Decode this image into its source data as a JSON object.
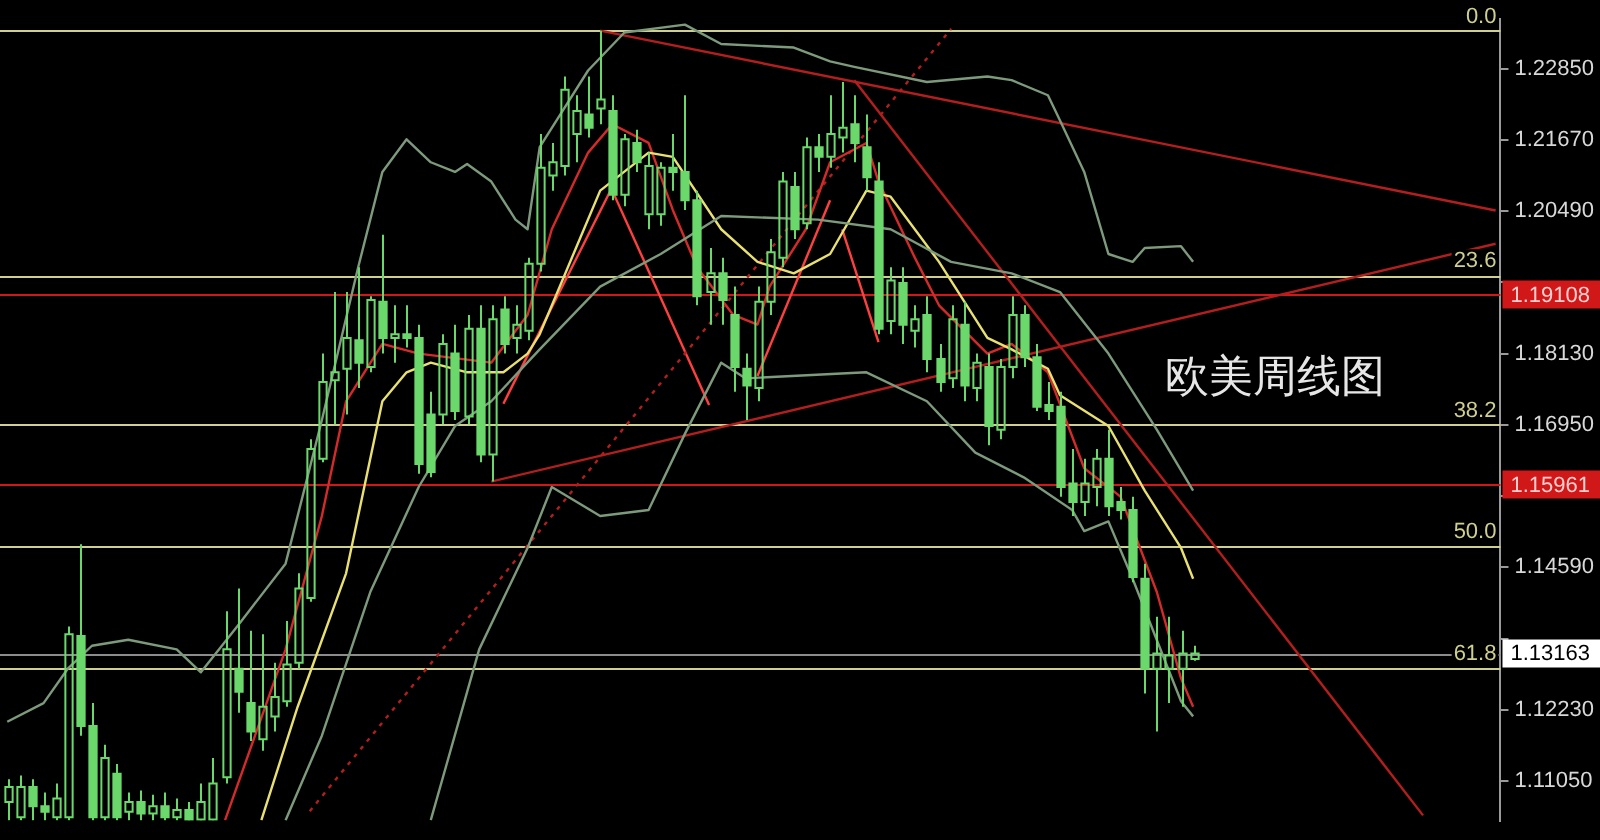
{
  "chart_data": {
    "type": "candlestick",
    "color": "#6ad86a",
    "categories": [
      null,
      null,
      null,
      null,
      null,
      null,
      null,
      null,
      null,
      null,
      null,
      null,
      null,
      null,
      null,
      null,
      null,
      null,
      null,
      null,
      null,
      null,
      null,
      null,
      null,
      null,
      null,
      null,
      null,
      null,
      null,
      null,
      null,
      null,
      null,
      null,
      null,
      null,
      null,
      null,
      null,
      null,
      null,
      null,
      null,
      null,
      null,
      null,
      null,
      null,
      null,
      null,
      null,
      null,
      null,
      null,
      null,
      null,
      null,
      null,
      null,
      null,
      null,
      null,
      null,
      null,
      null,
      null,
      null,
      null,
      null,
      null,
      null,
      null,
      null,
      null,
      null,
      null,
      null,
      null,
      null,
      null,
      null,
      null,
      null,
      null,
      null,
      null,
      null,
      null,
      null,
      null,
      null,
      null,
      null,
      null,
      null,
      null,
      null,
      null,
      null,
      null,
      null,
      null,
      null,
      null,
      null,
      null,
      null,
      null,
      null,
      null,
      null,
      null,
      null,
      null,
      null,
      null,
      null,
      null,
      null,
      null,
      null,
      null
    ],
    "ohlc": [
      [
        1.107,
        1.1108,
        1.104,
        1.1095
      ],
      [
        1.1045,
        1.1114,
        1.104,
        1.1095
      ],
      [
        1.1095,
        1.1108,
        1.104,
        1.1063
      ],
      [
        1.1063,
        1.1086,
        1.104,
        1.1054
      ],
      [
        1.1045,
        1.1101,
        1.104,
        1.1076
      ],
      [
        1.1045,
        1.1361,
        1.104,
        1.1348
      ],
      [
        1.1345,
        1.1497,
        1.118,
        1.1196
      ],
      [
        1.1196,
        1.1234,
        1.104,
        1.1045
      ],
      [
        1.1045,
        1.1165,
        1.104,
        1.1143
      ],
      [
        1.1117,
        1.1133,
        1.104,
        1.1045
      ],
      [
        1.1054,
        1.1086,
        1.104,
        1.107
      ],
      [
        1.107,
        1.1089,
        1.104,
        1.1051
      ],
      [
        1.1051,
        1.1082,
        1.104,
        1.1063
      ],
      [
        1.1063,
        1.1086,
        1.104,
        1.1045
      ],
      [
        1.1045,
        1.1076,
        1.104,
        1.1057
      ],
      [
        1.1057,
        1.107,
        1.104,
        1.1041
      ],
      [
        1.1041,
        1.1101,
        1.104,
        1.107
      ],
      [
        1.1041,
        1.1143,
        1.104,
        1.1101
      ],
      [
        1.1111,
        1.1386,
        1.1101,
        1.1323
      ],
      [
        1.1291,
        1.1424,
        1.1218,
        1.1253
      ],
      [
        1.1234,
        1.1354,
        1.1171,
        1.1187
      ],
      [
        1.1174,
        1.1348,
        1.1155,
        1.1228
      ],
      [
        1.1212,
        1.1301,
        1.1187,
        1.1244
      ],
      [
        1.1237,
        1.137,
        1.1228,
        1.1298
      ],
      [
        1.1301,
        1.1449,
        1.1291,
        1.1424
      ],
      [
        1.1408,
        1.1671,
        1.1402,
        1.1655
      ],
      [
        1.1639,
        1.1813,
        1.1633,
        1.1766
      ],
      [
        1.1769,
        1.1915,
        1.1696,
        1.1782
      ],
      [
        1.1788,
        1.1915,
        1.1712,
        1.1839
      ],
      [
        1.1835,
        1.1956,
        1.1756,
        1.1798
      ],
      [
        1.1791,
        1.1908,
        1.1782,
        1.1902
      ],
      [
        1.1899,
        1.201,
        1.1813,
        1.1839
      ],
      [
        1.1839,
        1.1893,
        1.1798,
        1.1845
      ],
      [
        1.1845,
        1.1893,
        1.1823,
        1.1839
      ],
      [
        1.1839,
        1.1861,
        1.1614,
        1.163
      ],
      [
        1.1712,
        1.175,
        1.1608,
        1.1617
      ],
      [
        1.1712,
        1.1845,
        1.1696,
        1.1829
      ],
      [
        1.1813,
        1.1861,
        1.1703,
        1.1718
      ],
      [
        1.1709,
        1.1877,
        1.1696,
        1.1854
      ],
      [
        1.1854,
        1.1893,
        1.1633,
        1.1646
      ],
      [
        1.1646,
        1.1893,
        1.1601,
        1.187
      ],
      [
        1.1886,
        1.1908,
        1.1813,
        1.1829
      ],
      [
        1.1839,
        1.1893,
        1.1813,
        1.1861
      ],
      [
        1.1851,
        1.1972,
        1.1835,
        1.1962
      ],
      [
        1.1962,
        1.2177,
        1.1949,
        1.2121
      ],
      [
        1.2108,
        1.2162,
        1.2083,
        1.213
      ],
      [
        1.2124,
        1.2272,
        1.2108,
        1.225
      ],
      [
        1.2177,
        1.2241,
        1.213,
        1.2215
      ],
      [
        1.2209,
        1.2272,
        1.2171,
        1.2187
      ],
      [
        1.2219,
        1.2348,
        1.2193,
        1.2234
      ],
      [
        1.2215,
        1.2241,
        1.2067,
        1.2076
      ],
      [
        1.2076,
        1.2177,
        1.2057,
        1.2168
      ],
      [
        1.2162,
        1.2184,
        1.2114,
        1.213
      ],
      [
        1.2044,
        1.2146,
        1.2019,
        1.2124
      ],
      [
        1.2044,
        1.213,
        1.2025,
        1.2121
      ],
      [
        1.2121,
        1.2177,
        1.2083,
        1.2114
      ],
      [
        1.2114,
        1.2241,
        1.2051,
        1.2067
      ],
      [
        1.2067,
        1.2083,
        1.1893,
        1.1908
      ],
      [
        1.1915,
        1.1988,
        1.1861,
        1.1946
      ],
      [
        1.1946,
        1.1972,
        1.1861,
        1.1902
      ],
      [
        1.1877,
        1.1924,
        1.175,
        1.1791
      ],
      [
        1.1788,
        1.1813,
        1.1703,
        1.176
      ],
      [
        1.1756,
        1.1924,
        1.1734,
        1.1899
      ],
      [
        1.1899,
        1.2003,
        1.1877,
        1.1981
      ],
      [
        1.1972,
        1.2114,
        1.1956,
        1.2098
      ],
      [
        1.2089,
        1.2114,
        1.2003,
        1.2019
      ],
      [
        1.2029,
        1.2171,
        1.2019,
        1.2155
      ],
      [
        1.2155,
        1.2177,
        1.2114,
        1.2139
      ],
      [
        1.2139,
        1.2241,
        1.2121,
        1.2177
      ],
      [
        1.2171,
        1.2263,
        1.2146,
        1.2187
      ],
      [
        1.2193,
        1.2241,
        1.213,
        1.2162
      ],
      [
        1.2155,
        1.2209,
        1.2083,
        1.2105
      ],
      [
        1.2098,
        1.213,
        1.1845,
        1.1854
      ],
      [
        1.1867,
        1.1956,
        1.1845,
        1.1934
      ],
      [
        1.193,
        1.1956,
        1.1829,
        1.1861
      ],
      [
        1.1851,
        1.1893,
        1.1823,
        1.187
      ],
      [
        1.1877,
        1.1908,
        1.1782,
        1.1804
      ],
      [
        1.1804,
        1.1829,
        1.175,
        1.1766
      ],
      [
        1.1772,
        1.1893,
        1.1756,
        1.187
      ],
      [
        1.1861,
        1.1899,
        1.1734,
        1.176
      ],
      [
        1.1756,
        1.1813,
        1.1734,
        1.1798
      ],
      [
        1.1791,
        1.1813,
        1.1661,
        1.1693
      ],
      [
        1.1687,
        1.1804,
        1.1671,
        1.1791
      ],
      [
        1.1791,
        1.1908,
        1.1772,
        1.1877
      ],
      [
        1.1877,
        1.1893,
        1.1791,
        1.1807
      ],
      [
        1.1807,
        1.1829,
        1.1718,
        1.1725
      ],
      [
        1.1728,
        1.1766,
        1.1703,
        1.1718
      ],
      [
        1.1725,
        1.175,
        1.1576,
        1.1592
      ],
      [
        1.1598,
        1.1655,
        1.1544,
        1.1567
      ],
      [
        1.1567,
        1.1639,
        1.1544,
        1.1598
      ],
      [
        1.1592,
        1.1655,
        1.156,
        1.1639
      ],
      [
        1.1639,
        1.1687,
        1.1544,
        1.156
      ],
      [
        1.1567,
        1.1592,
        1.1538,
        1.1554
      ],
      [
        1.1554,
        1.1576,
        1.1434,
        1.1443
      ],
      [
        1.144,
        1.1465,
        1.125,
        1.1291
      ],
      [
        1.1291,
        1.1377,
        1.1187,
        1.1316
      ],
      [
        1.1291,
        1.1377,
        1.1234,
        1.1313
      ],
      [
        1.1291,
        1.1354,
        1.1228,
        1.1316
      ],
      [
        1.1307,
        1.1329,
        1.1304,
        1.1316
      ],
      null,
      null,
      null,
      null,
      null,
      null,
      null,
      null,
      null,
      null,
      null,
      null,
      null,
      null,
      null,
      null,
      null,
      null,
      null,
      null,
      null,
      null,
      null,
      null,
      null
    ],
    "series": [
      {
        "type": "line",
        "color": "#7d9a7d",
        "values": [
          1.1203,
          null,
          null,
          1.1234,
          null,
          1.1291,
          null,
          1.1329,
          null,
          null,
          1.1339,
          null,
          null,
          null,
          1.1323,
          null,
          1.1285,
          null,
          null,
          1.1361,
          null,
          null,
          null,
          1.1465,
          null,
          null,
          1.1703,
          null,
          null,
          1.1956,
          null,
          1.2114,
          null,
          1.2168,
          null,
          1.213,
          null,
          1.2114,
          1.2127,
          null,
          1.2098,
          null,
          1.2035,
          1.2019,
          1.2155,
          null,
          null,
          null,
          1.2282,
          null,
          null,
          1.2345,
          null,
          null,
          null,
          null,
          1.2358,
          null,
          null,
          1.2326,
          null,
          null,
          null,
          null,
          null,
          1.232,
          null,
          null,
          1.2297,
          null,
          1.2288,
          null,
          null,
          null,
          null,
          null,
          1.2263,
          null,
          null,
          null,
          null,
          1.2272,
          null,
          1.2266,
          null,
          null,
          1.2241,
          1.2199,
          null,
          1.2114,
          null,
          1.1978,
          null,
          1.1965,
          1.1988,
          null,
          null,
          1.1991,
          1.1965,
          null,
          null,
          null,
          null,
          null,
          null,
          null,
          null,
          null,
          null,
          null,
          null,
          null,
          null,
          null,
          null,
          null,
          null,
          null,
          null,
          null,
          null,
          null,
          null,
          null
        ]
      },
      {
        "type": "line",
        "color": "#7d9a7d",
        "values": [
          null,
          null,
          null,
          null,
          null,
          null,
          null,
          null,
          null,
          null,
          null,
          null,
          null,
          null,
          null,
          null,
          null,
          null,
          null,
          null,
          null,
          null,
          null,
          1.104,
          null,
          null,
          1.118,
          null,
          null,
          null,
          1.1418,
          null,
          null,
          null,
          1.1592,
          null,
          null,
          1.1693,
          null,
          null,
          1.1734,
          null,
          null,
          null,
          1.182,
          null,
          null,
          null,
          null,
          1.1924,
          null,
          null,
          null,
          null,
          1.1978,
          null,
          null,
          null,
          null,
          1.2041,
          null,
          null,
          null,
          null,
          null,
          null,
          null,
          1.2035,
          null,
          null,
          null,
          null,
          null,
          1.2019,
          null,
          null,
          null,
          null,
          1.1965,
          null,
          null,
          null,
          null,
          1.1946,
          null,
          null,
          null,
          1.1915,
          null,
          null,
          null,
          1.1813,
          null,
          null,
          null,
          1.1687,
          null,
          null,
          1.1586,
          null,
          null,
          null,
          null,
          null,
          null,
          null,
          null,
          null,
          null,
          null,
          null,
          null,
          null,
          null,
          null,
          null,
          null,
          null,
          null,
          null,
          null,
          null,
          null,
          null
        ]
      },
      {
        "type": "line",
        "color": "#7d9a7d",
        "values": [
          null,
          null,
          null,
          null,
          null,
          null,
          null,
          null,
          null,
          null,
          null,
          null,
          null,
          null,
          null,
          null,
          null,
          null,
          null,
          null,
          null,
          null,
          null,
          null,
          null,
          null,
          null,
          null,
          null,
          null,
          null,
          null,
          null,
          null,
          null,
          1.104,
          null,
          null,
          null,
          1.1323,
          null,
          null,
          null,
          1.1491,
          null,
          1.1592,
          null,
          null,
          null,
          1.1544,
          null,
          null,
          null,
          1.1554,
          null,
          null,
          1.168,
          null,
          null,
          1.1798,
          null,
          1.1772,
          null,
          null,
          null,
          null,
          null,
          null,
          null,
          null,
          null,
          1.1782,
          null,
          null,
          null,
          null,
          1.1734,
          null,
          null,
          null,
          1.1649,
          null,
          null,
          null,
          1.1608,
          null,
          null,
          null,
          1.1554,
          1.1519,
          null,
          1.1535,
          null,
          1.144,
          null,
          null,
          null,
          1.1237,
          1.1212,
          null,
          null,
          null,
          null,
          null,
          null,
          null,
          null,
          null,
          null,
          null,
          null,
          null,
          null,
          null,
          null,
          null,
          null,
          null,
          null,
          null,
          null,
          null,
          null,
          null
        ]
      },
      {
        "type": "line",
        "color": "#e8e070",
        "values": [
          null,
          null,
          null,
          null,
          null,
          null,
          null,
          null,
          null,
          null,
          null,
          null,
          null,
          null,
          null,
          null,
          null,
          null,
          null,
          null,
          null,
          1.104,
          null,
          null,
          1.1228,
          null,
          null,
          null,
          1.1449,
          null,
          null,
          1.1734,
          null,
          1.1782,
          null,
          1.1798,
          null,
          null,
          1.1782,
          null,
          null,
          1.1782,
          null,
          1.1813,
          1.1845,
          null,
          null,
          1.1988,
          null,
          1.2083,
          null,
          null,
          null,
          1.2146,
          null,
          1.2139,
          null,
          null,
          null,
          1.2019,
          null,
          null,
          1.1965,
          null,
          null,
          1.1946,
          null,
          null,
          1.1978,
          null,
          null,
          1.2083,
          null,
          1.2073,
          null,
          null,
          null,
          1.1965,
          null,
          null,
          null,
          1.1839,
          null,
          1.182,
          null,
          null,
          1.1788,
          1.1744,
          null,
          null,
          null,
          1.1693,
          null,
          null,
          1.1586,
          null,
          null,
          1.1491,
          1.144,
          null,
          null,
          null,
          null,
          null,
          null,
          null,
          null,
          null,
          null,
          null,
          null,
          null,
          null,
          null,
          null,
          null,
          null,
          null,
          null,
          null,
          null,
          null,
          null,
          null
        ]
      },
      {
        "type": "line",
        "color": "#d42a2a",
        "values": [
          null,
          null,
          null,
          null,
          null,
          null,
          null,
          null,
          null,
          null,
          null,
          null,
          null,
          null,
          null,
          null,
          null,
          null,
          1.104,
          null,
          null,
          null,
          null,
          1.1323,
          null,
          null,
          1.1544,
          null,
          1.1734,
          null,
          null,
          1.1829,
          null,
          null,
          1.1813,
          null,
          null,
          null,
          null,
          null,
          1.1798,
          null,
          null,
          1.1877,
          null,
          1.2019,
          null,
          null,
          1.2146,
          null,
          1.2193,
          null,
          null,
          1.2162,
          null,
          1.2051,
          null,
          1.1956,
          null,
          null,
          1.1877,
          null,
          1.1861,
          1.1924,
          null,
          null,
          1.2019,
          null,
          1.213,
          null,
          null,
          1.2162,
          1.2098,
          null,
          null,
          1.1972,
          null,
          1.1893,
          null,
          null,
          null,
          1.1813,
          null,
          1.1829,
          null,
          null,
          1.1782,
          null,
          null,
          1.1623,
          null,
          null,
          1.1576,
          null,
          null,
          1.1418,
          null,
          1.1275,
          1.1228,
          null,
          null,
          null,
          null,
          null,
          null,
          null,
          null,
          null,
          null,
          null,
          null,
          null,
          null,
          null,
          null,
          null,
          null,
          null,
          null,
          null,
          null,
          null,
          null,
          null
        ]
      },
      {
        "type": "line",
        "color": "#b41e1e",
        "values": [
          null,
          null,
          null,
          null,
          null,
          null,
          null,
          null,
          null,
          null,
          null,
          null,
          null,
          null,
          null,
          null,
          null,
          null,
          null,
          null,
          null,
          null,
          null,
          null,
          null,
          null,
          null,
          null,
          null,
          null,
          null,
          null,
          null,
          null,
          null,
          null,
          null,
          null,
          null,
          null,
          null,
          null,
          null,
          null,
          null,
          null,
          null,
          null,
          null,
          1.2348,
          null,
          null,
          null,
          null,
          null,
          null,
          null,
          null,
          null,
          null,
          null,
          null,
          null,
          null,
          null,
          null,
          null,
          null,
          null,
          null,
          null,
          null,
          null,
          null,
          null,
          null,
          null,
          null,
          null,
          null,
          null,
          null,
          null,
          null,
          null,
          null,
          null,
          null,
          null,
          null,
          null,
          null,
          null,
          null,
          null,
          null,
          null,
          null,
          null,
          null,
          null,
          null,
          null,
          null,
          null,
          null,
          null,
          null,
          null,
          null,
          null,
          null,
          null,
          null,
          null,
          null,
          null,
          null,
          null,
          null,
          null,
          null,
          null,
          1.205
        ]
      },
      {
        "type": "line",
        "color": "#b41e1e",
        "values": [
          null,
          null,
          null,
          null,
          null,
          null,
          null,
          null,
          null,
          null,
          null,
          null,
          null,
          null,
          null,
          null,
          null,
          null,
          null,
          null,
          null,
          null,
          null,
          null,
          null,
          null,
          null,
          null,
          null,
          null,
          null,
          null,
          null,
          null,
          null,
          null,
          null,
          null,
          null,
          null,
          null,
          null,
          null,
          null,
          null,
          null,
          null,
          null,
          null,
          null,
          null,
          null,
          null,
          null,
          null,
          null,
          null,
          null,
          null,
          null,
          null,
          null,
          null,
          null,
          null,
          null,
          null,
          null,
          null,
          null,
          1.2266,
          null,
          null,
          null,
          null,
          null,
          null,
          null,
          null,
          null,
          null,
          null,
          null,
          null,
          null,
          null,
          null,
          null,
          null,
          null,
          null,
          null,
          null,
          null,
          null,
          null,
          null,
          null,
          null,
          null,
          null,
          null,
          null,
          null,
          null,
          null,
          null,
          null,
          null,
          null,
          null,
          null,
          null,
          null,
          null,
          null,
          null,
          1.1048,
          null,
          null,
          null,
          null,
          null,
          null
        ]
      },
      {
        "type": "line",
        "color": "#b41e1e",
        "values": [
          null,
          null,
          null,
          null,
          null,
          null,
          null,
          null,
          null,
          null,
          null,
          null,
          null,
          null,
          null,
          null,
          null,
          null,
          null,
          null,
          null,
          null,
          null,
          null,
          null,
          null,
          null,
          null,
          null,
          null,
          null,
          null,
          null,
          null,
          null,
          null,
          null,
          null,
          null,
          null,
          1.1601,
          null,
          null,
          null,
          null,
          null,
          null,
          null,
          null,
          null,
          null,
          null,
          null,
          null,
          null,
          null,
          null,
          null,
          null,
          null,
          null,
          null,
          null,
          null,
          null,
          null,
          null,
          null,
          null,
          null,
          null,
          null,
          null,
          null,
          null,
          null,
          null,
          null,
          null,
          null,
          null,
          null,
          null,
          null,
          null,
          null,
          null,
          null,
          null,
          null,
          null,
          null,
          null,
          null,
          null,
          null,
          null,
          null,
          null,
          null,
          null,
          null,
          null,
          null,
          null,
          null,
          null,
          null,
          null,
          null,
          null,
          null,
          null,
          null,
          null,
          null,
          null,
          null,
          null,
          null,
          null,
          null,
          null,
          1.1995
        ]
      },
      {
        "type": "line",
        "color": "#b41e1e",
        "line_style": "dotted",
        "values": [
          null,
          null,
          null,
          null,
          null,
          null,
          null,
          null,
          null,
          null,
          null,
          null,
          null,
          null,
          null,
          null,
          null,
          null,
          null,
          null,
          null,
          null,
          null,
          null,
          null,
          1.1055,
          null,
          null,
          null,
          null,
          null,
          null,
          null,
          null,
          null,
          null,
          null,
          null,
          null,
          null,
          null,
          null,
          null,
          null,
          null,
          null,
          null,
          null,
          null,
          null,
          null,
          null,
          null,
          null,
          null,
          null,
          null,
          null,
          null,
          null,
          null,
          null,
          null,
          null,
          null,
          null,
          null,
          null,
          null,
          null,
          null,
          null,
          null,
          null,
          null,
          null,
          null,
          null,
          1.2351,
          null,
          null,
          null,
          null,
          null,
          null,
          null,
          null,
          null,
          null,
          null,
          null,
          null,
          null,
          null,
          null,
          null,
          null,
          null,
          null,
          null,
          null,
          null,
          null,
          null,
          null,
          null,
          null,
          null,
          null,
          null,
          null,
          null,
          null,
          null,
          null,
          null,
          null,
          null,
          null,
          null,
          null,
          null,
          null,
          null
        ]
      },
      {
        "type": "line",
        "color": "#ff4040",
        "values": [
          null,
          null,
          null,
          null,
          null,
          null,
          null,
          null,
          null,
          null,
          null,
          null,
          null,
          null,
          null,
          null,
          null,
          null,
          null,
          null,
          null,
          null,
          null,
          null,
          null,
          null,
          null,
          null,
          null,
          null,
          null,
          null,
          null,
          null,
          null,
          null,
          null,
          null,
          null,
          null,
          null,
          1.173,
          null,
          null,
          null,
          null,
          null,
          null,
          null,
          null,
          1.2089,
          null,
          null,
          null,
          null,
          null,
          null,
          null,
          null,
          null,
          null,
          null,
          null,
          null,
          null,
          null,
          null,
          null,
          null,
          null,
          null,
          null,
          null,
          null,
          null,
          null,
          null,
          null,
          null,
          null,
          null,
          null,
          null,
          null,
          null,
          null,
          null,
          null,
          null,
          null,
          null,
          null,
          null,
          null,
          null,
          null,
          null,
          null,
          null,
          null,
          null,
          null,
          null,
          null,
          null,
          null,
          null,
          null,
          null,
          null,
          null,
          null,
          null,
          null,
          null,
          null,
          null,
          null,
          null,
          null,
          null,
          null,
          null,
          null
        ]
      },
      {
        "type": "line",
        "color": "#ff4040",
        "values": [
          null,
          null,
          null,
          null,
          null,
          null,
          null,
          null,
          null,
          null,
          null,
          null,
          null,
          null,
          null,
          null,
          null,
          null,
          null,
          null,
          null,
          null,
          null,
          null,
          null,
          null,
          null,
          null,
          null,
          null,
          null,
          null,
          null,
          null,
          null,
          null,
          null,
          null,
          null,
          null,
          null,
          null,
          null,
          null,
          null,
          null,
          null,
          null,
          null,
          null,
          1.2083,
          null,
          null,
          null,
          null,
          null,
          null,
          null,
          1.1728,
          null,
          null,
          null,
          null,
          null,
          null,
          null,
          null,
          null,
          null,
          null,
          null,
          null,
          null,
          null,
          null,
          null,
          null,
          null,
          null,
          null,
          null,
          null,
          null,
          null,
          null,
          null,
          null,
          null,
          null,
          null,
          null,
          null,
          null,
          null,
          null,
          null,
          null,
          null,
          null,
          null,
          null,
          null,
          null,
          null,
          null,
          null,
          null,
          null,
          null,
          null,
          null,
          null,
          null,
          null,
          null,
          null,
          null,
          null,
          null,
          null,
          null,
          null,
          null,
          null
        ]
      },
      {
        "type": "line",
        "color": "#ff4040",
        "values": [
          null,
          null,
          null,
          null,
          null,
          null,
          null,
          null,
          null,
          null,
          null,
          null,
          null,
          null,
          null,
          null,
          null,
          null,
          null,
          null,
          null,
          null,
          null,
          null,
          null,
          null,
          null,
          null,
          null,
          null,
          null,
          null,
          null,
          null,
          null,
          null,
          null,
          null,
          null,
          null,
          null,
          null,
          null,
          null,
          null,
          null,
          null,
          null,
          null,
          null,
          null,
          null,
          null,
          null,
          null,
          null,
          null,
          null,
          null,
          null,
          null,
          null,
          1.1776,
          null,
          null,
          null,
          null,
          null,
          1.2067,
          null,
          null,
          null,
          null,
          null,
          null,
          null,
          null,
          null,
          null,
          null,
          null,
          null,
          null,
          null,
          null,
          null,
          null,
          null,
          null,
          null,
          null,
          null,
          null,
          null,
          null,
          null,
          null,
          null,
          null,
          null,
          null,
          null,
          null,
          null,
          null,
          null,
          null,
          null,
          null,
          null,
          null,
          null,
          null,
          null,
          null,
          null,
          null,
          null,
          null,
          null,
          null,
          null,
          null,
          null
        ]
      },
      {
        "type": "line",
        "color": "#ff4040",
        "values": [
          null,
          null,
          null,
          null,
          null,
          null,
          null,
          null,
          null,
          null,
          null,
          null,
          null,
          null,
          null,
          null,
          null,
          null,
          null,
          null,
          null,
          null,
          null,
          null,
          null,
          null,
          null,
          null,
          null,
          null,
          null,
          null,
          null,
          null,
          null,
          null,
          null,
          null,
          null,
          null,
          null,
          null,
          null,
          null,
          null,
          null,
          null,
          null,
          null,
          null,
          null,
          null,
          null,
          null,
          null,
          null,
          null,
          null,
          null,
          null,
          null,
          null,
          null,
          null,
          null,
          null,
          null,
          null,
          null,
          1.2019,
          null,
          null,
          1.1832,
          null,
          null,
          null,
          null,
          null,
          null,
          null,
          null,
          null,
          null,
          null,
          null,
          null,
          null,
          null,
          null,
          null,
          null,
          null,
          null,
          null,
          null,
          null,
          null,
          null,
          null,
          null,
          null,
          null,
          null,
          null,
          null,
          null,
          null,
          null,
          null,
          null,
          null,
          null,
          null,
          null,
          null,
          null,
          null,
          null,
          null,
          null,
          null,
          null,
          null,
          null
        ]
      }
    ],
    "ylim": [
      1.1039,
      1.2367
    ],
    "yticks": [
      {
        "value": 1.2285,
        "label": "1.22850"
      },
      {
        "value": 1.2167,
        "label": "1.21670"
      },
      {
        "value": 1.2049,
        "label": "1.20490"
      },
      {
        "value": 1.1931,
        "label": null
      },
      {
        "value": 1.1813,
        "label": "1.18130"
      },
      {
        "value": 1.1695,
        "label": "1.16950"
      },
      {
        "value": 1.1577,
        "label": null
      },
      {
        "value": 1.1459,
        "label": "1.14590"
      },
      {
        "value": 1.1341,
        "label": null
      },
      {
        "value": 1.1223,
        "label": "1.12230"
      },
      {
        "value": 1.1105,
        "label": "1.11050"
      }
    ],
    "ref_lines": [
      {
        "axis": "y",
        "value": 1.2348,
        "color": "#cfcf8f"
      },
      {
        "axis": "y",
        "value": 1.1943,
        "color": "#cfcf8f"
      },
      {
        "axis": "y",
        "value": 1.1695,
        "color": "#cfcf8f"
      },
      {
        "axis": "y",
        "value": 1.1494,
        "color": "#cfcf8f"
      },
      {
        "axis": "y",
        "value": 1.1292,
        "color": "#cfcf8f"
      },
      {
        "axis": "y",
        "value": 1.19108,
        "label": "1.19108",
        "color": "#d01818"
      },
      {
        "axis": "y",
        "value": 1.15961,
        "label": "1.15961",
        "color": "#d01818"
      },
      {
        "axis": "y",
        "value": 1.13163,
        "label": "1.13163",
        "color": "#8c8c8c"
      }
    ],
    "annotations": [
      "欧美周线图",
      {
        "text": "0.0",
        "y": 1.2348
      },
      {
        "text": "23.6",
        "y": 1.1943
      },
      {
        "text": "38.2",
        "y": 1.1695
      },
      {
        "text": "50.0",
        "y": 1.1494
      },
      {
        "text": "61.8",
        "y": 1.1292
      }
    ]
  }
}
